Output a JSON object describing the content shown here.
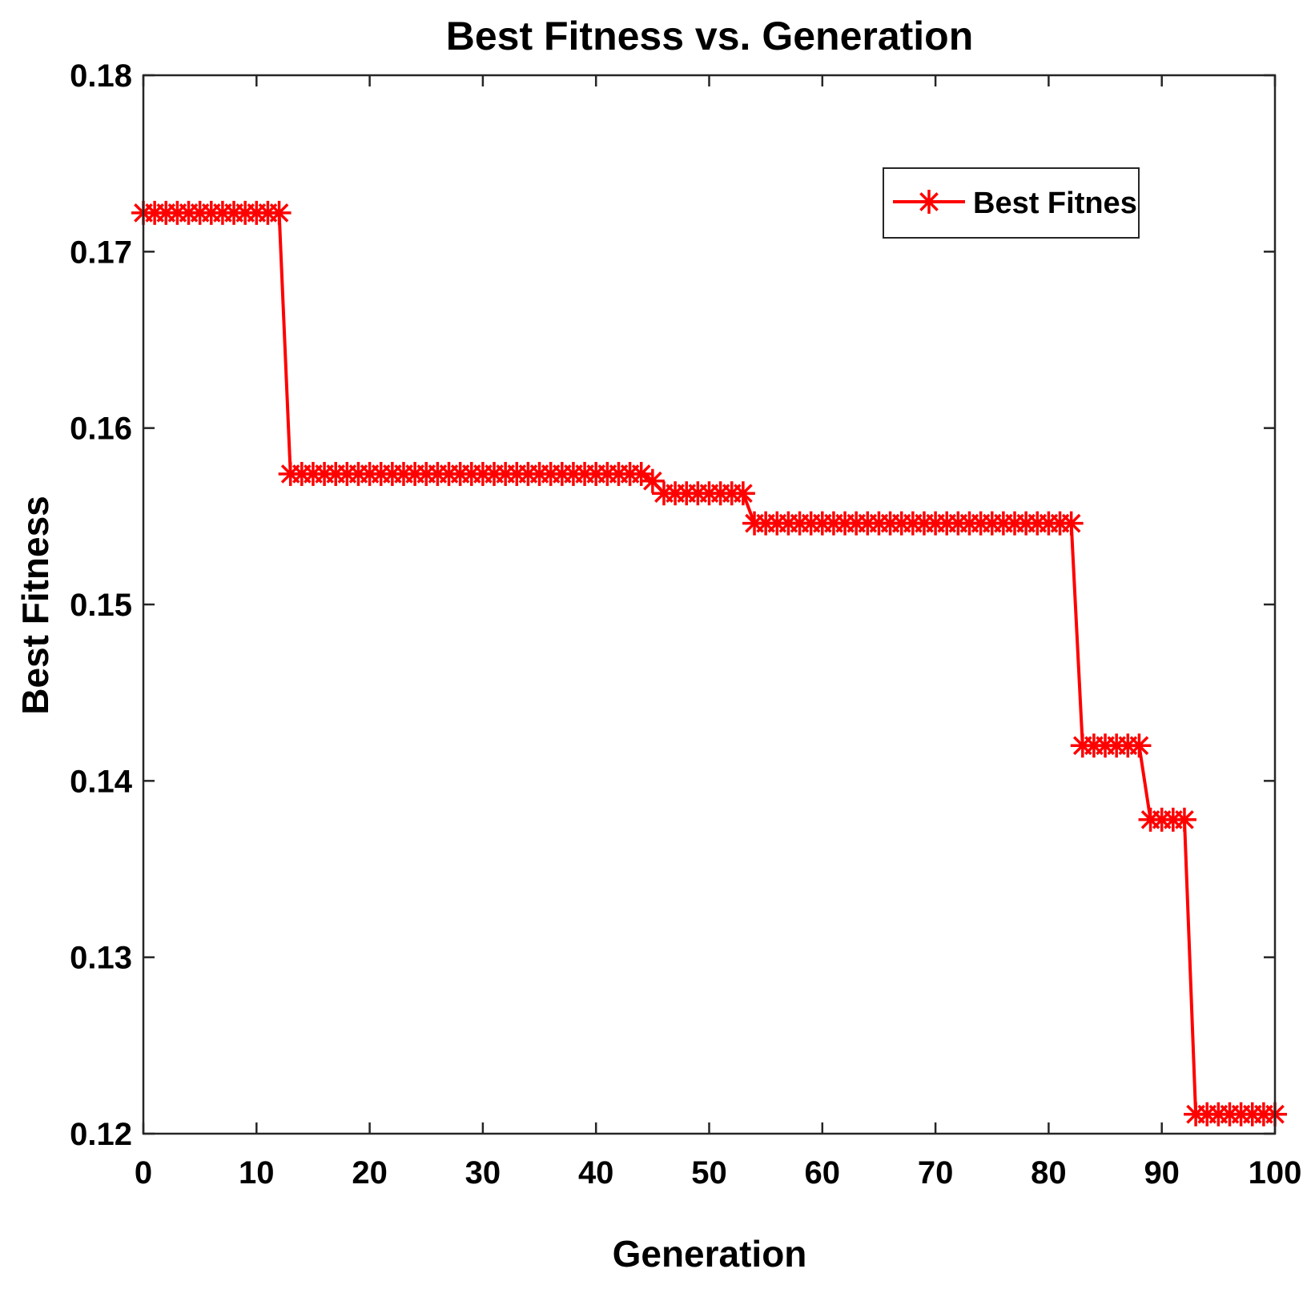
{
  "chart_data": {
    "type": "line",
    "title": "Best Fitness vs. Generation",
    "xlabel": "Generation",
    "ylabel": "Best Fitness",
    "xlim": [
      0,
      100
    ],
    "ylim": [
      0.12,
      0.18
    ],
    "xticks": [
      0,
      10,
      20,
      30,
      40,
      50,
      60,
      70,
      80,
      90,
      100
    ],
    "xtick_labels": [
      "0",
      "10",
      "20",
      "30",
      "40",
      "50",
      "60",
      "70",
      "80",
      "90",
      "100"
    ],
    "yticks": [
      0.12,
      0.13,
      0.14,
      0.15,
      0.16,
      0.17,
      0.18
    ],
    "ytick_labels": [
      "0.12",
      "0.13",
      "0.14",
      "0.15",
      "0.16",
      "0.17",
      "0.18"
    ],
    "grid": false,
    "legend_position": "top-right",
    "series": [
      {
        "name": "Best Fitnes",
        "color": "#ff0000",
        "marker": "asterisk",
        "x": [
          0,
          1,
          2,
          3,
          4,
          5,
          6,
          7,
          8,
          9,
          10,
          11,
          12,
          13,
          14,
          15,
          16,
          17,
          18,
          19,
          20,
          21,
          22,
          23,
          24,
          25,
          26,
          27,
          28,
          29,
          30,
          31,
          32,
          33,
          34,
          35,
          36,
          37,
          38,
          39,
          40,
          41,
          42,
          43,
          44,
          45,
          46,
          47,
          48,
          49,
          50,
          51,
          52,
          53,
          54,
          55,
          56,
          57,
          58,
          59,
          60,
          61,
          62,
          63,
          64,
          65,
          66,
          67,
          68,
          69,
          70,
          71,
          72,
          73,
          74,
          75,
          76,
          77,
          78,
          79,
          80,
          81,
          82,
          83,
          84,
          85,
          86,
          87,
          88,
          89,
          90,
          91,
          92,
          93,
          94,
          95,
          96,
          97,
          98,
          99,
          100
        ],
        "values": [
          0.1722,
          0.1722,
          0.1722,
          0.1722,
          0.1722,
          0.1722,
          0.1722,
          0.1722,
          0.1722,
          0.1722,
          0.1722,
          0.1722,
          0.1722,
          0.1574,
          0.1574,
          0.1574,
          0.1574,
          0.1574,
          0.1574,
          0.1574,
          0.1574,
          0.1574,
          0.1574,
          0.1574,
          0.1574,
          0.1574,
          0.1574,
          0.1574,
          0.1574,
          0.1574,
          0.1574,
          0.1574,
          0.1574,
          0.1574,
          0.1574,
          0.1574,
          0.1574,
          0.1574,
          0.1574,
          0.1574,
          0.1574,
          0.1574,
          0.1574,
          0.1574,
          0.1574,
          0.157,
          0.1563,
          0.1563,
          0.1563,
          0.1563,
          0.1563,
          0.1563,
          0.1563,
          0.1563,
          0.1546,
          0.1546,
          0.1546,
          0.1546,
          0.1546,
          0.1546,
          0.1546,
          0.1546,
          0.1546,
          0.1546,
          0.1546,
          0.1546,
          0.1546,
          0.1546,
          0.1546,
          0.1546,
          0.1546,
          0.1546,
          0.1546,
          0.1546,
          0.1546,
          0.1546,
          0.1546,
          0.1546,
          0.1546,
          0.1546,
          0.1546,
          0.1546,
          0.1546,
          0.142,
          0.142,
          0.142,
          0.142,
          0.142,
          0.142,
          0.1378,
          0.1378,
          0.1378,
          0.1378,
          0.1211,
          0.1211,
          0.1211,
          0.1211,
          0.1211,
          0.1211,
          0.1211,
          0.1211
        ]
      }
    ]
  }
}
